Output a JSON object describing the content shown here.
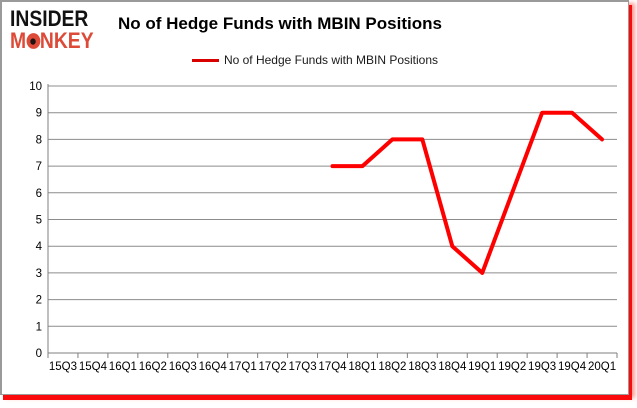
{
  "brand": {
    "line1": "INSIDER",
    "line2_pre": "M",
    "line2_post": "NKEY",
    "color": "#dd4a37"
  },
  "header": {
    "title": "No of Hedge Funds with MBIN Positions"
  },
  "legend": {
    "label": "No of Hedge Funds with MBIN Positions",
    "marker_color": "#d90000"
  },
  "chart_data": {
    "type": "line",
    "title": "No of Hedge Funds with MBIN Positions",
    "categories": [
      "15Q3",
      "15Q4",
      "16Q1",
      "16Q2",
      "16Q3",
      "16Q4",
      "17Q1",
      "17Q2",
      "17Q3",
      "17Q4",
      "18Q1",
      "18Q2",
      "18Q3",
      "18Q4",
      "19Q1",
      "19Q2",
      "19Q3",
      "19Q4",
      "20Q1"
    ],
    "series": [
      {
        "name": "No of Hedge Funds with MBIN Positions",
        "color": "#fe0000",
        "values": [
          null,
          null,
          null,
          null,
          null,
          null,
          null,
          null,
          null,
          7,
          7,
          8,
          8,
          4,
          3,
          6,
          9,
          9,
          8
        ]
      }
    ],
    "ylim": [
      0,
      10
    ],
    "y_ticks": [
      0,
      1,
      2,
      3,
      4,
      5,
      6,
      7,
      8,
      9,
      10
    ],
    "grid": true,
    "legend_position": "top",
    "colors": {
      "axis": "#7f7f7f",
      "grid": "#8c8c8c",
      "tick_label": "#000000"
    }
  }
}
